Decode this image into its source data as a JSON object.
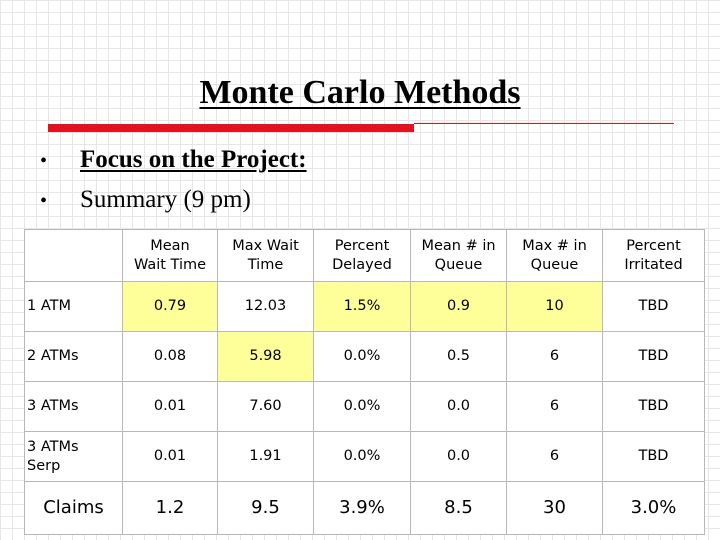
{
  "slide": {
    "title": "Monte Carlo Methods",
    "bullets": [
      {
        "marker": "•",
        "text": "Focus on the Project:"
      },
      {
        "marker": "•",
        "text": "Summary (9 pm)"
      }
    ]
  },
  "table": {
    "headers": [
      "",
      "Mean\nWait Time",
      "Max Wait\nTime",
      "Percent\nDelayed",
      "Mean # in\nQueue",
      "Max # in\nQueue",
      "Percent\nIrritated"
    ],
    "rows": [
      {
        "label": "1 ATM",
        "cells": [
          "0.79",
          "12.03",
          "1.5%",
          "0.9",
          "10",
          "TBD"
        ]
      },
      {
        "label": "2 ATMs",
        "cells": [
          "0.08",
          "5.98",
          "0.0%",
          "0.5",
          "6",
          "TBD"
        ]
      },
      {
        "label": "3 ATMs",
        "cells": [
          "0.01",
          "7.60",
          "0.0%",
          "0.0",
          "6",
          "TBD"
        ]
      },
      {
        "label": "3 ATMs\nSerp",
        "cells": [
          "0.01",
          "1.91",
          "0.0%",
          "0.0",
          "6",
          "TBD"
        ]
      }
    ],
    "footer": {
      "label": "Claims",
      "cells": [
        "1.2",
        "9.5",
        "3.9%",
        "8.5",
        "30",
        "3.0%"
      ]
    },
    "highlight_color": "#ffff99"
  },
  "colors": {
    "accent_rule": "#e0141e"
  }
}
